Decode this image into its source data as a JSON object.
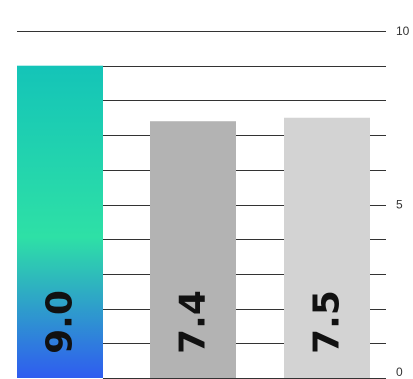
{
  "chart_data": {
    "type": "bar",
    "categories": [
      "",
      "",
      ""
    ],
    "values": [
      9.0,
      7.4,
      7.5
    ],
    "value_labels": [
      "9.0",
      "7.4",
      "7.5"
    ],
    "ylim": [
      0,
      10
    ],
    "y_ticks": [
      0,
      5,
      10
    ],
    "y_tick_labels": [
      "0",
      "5",
      "10"
    ],
    "grid": true,
    "bar_colors": [
      "gradient-teal-to-blue",
      "#b3b3b3",
      "#d3d3d3"
    ],
    "gradient_colors": {
      "top": "#14c4b8",
      "middle": "#2ee0a6",
      "bottom": "#2f5cf0"
    },
    "title": "",
    "xlabel": "",
    "ylabel": ""
  }
}
